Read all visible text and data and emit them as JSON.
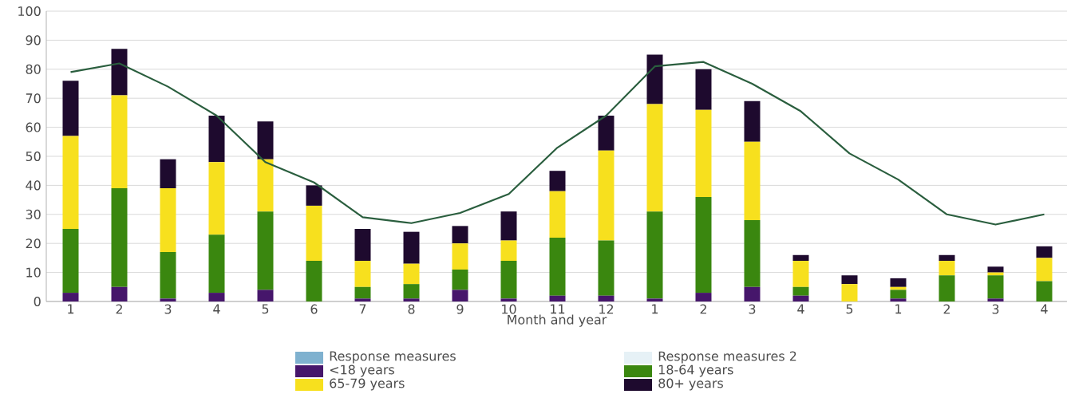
{
  "chart_data": {
    "type": "bar",
    "stacked": true,
    "xlabel": "Month and year",
    "categories": [
      "1",
      "2",
      "3",
      "4",
      "5",
      "6",
      "7",
      "8",
      "9",
      "10",
      "11",
      "12",
      "1",
      "2",
      "3",
      "4",
      "5",
      "1",
      "2",
      "3",
      "4"
    ],
    "ylim": [
      0,
      100
    ],
    "yticks": [
      0,
      10,
      20,
      30,
      40,
      50,
      60,
      70,
      80,
      90,
      100
    ],
    "grid": "y",
    "legend": "bottom",
    "series": [
      {
        "name": "Response measures",
        "color": "#7fb1cf",
        "values": [
          null,
          null,
          null,
          null,
          null,
          null,
          null,
          null,
          null,
          null,
          null,
          null,
          null,
          null,
          null,
          null,
          null,
          null,
          null,
          null,
          null
        ]
      },
      {
        "name": "Response measures 2",
        "color": "#e6f1f6",
        "values": [
          null,
          null,
          null,
          null,
          null,
          null,
          null,
          null,
          null,
          null,
          null,
          null,
          null,
          null,
          null,
          null,
          null,
          null,
          null,
          null,
          null
        ]
      },
      {
        "name": "<18 years",
        "color": "#46166b",
        "values": [
          3,
          5,
          1,
          3,
          4,
          0,
          1,
          1,
          4,
          1,
          2,
          2,
          1,
          3,
          5,
          2,
          0,
          1,
          0,
          1,
          0
        ]
      },
      {
        "name": "18-64 years",
        "color": "#3a870f",
        "values": [
          22,
          34,
          16,
          20,
          27,
          14,
          4,
          5,
          7,
          13,
          20,
          19,
          30,
          33,
          23,
          3,
          0,
          3,
          9,
          8,
          7
        ]
      },
      {
        "name": "65-79 years",
        "color": "#f7e01e",
        "values": [
          32,
          32,
          22,
          25,
          18,
          19,
          9,
          7,
          9,
          7,
          16,
          31,
          37,
          30,
          27,
          9,
          6,
          1,
          5,
          1,
          8
        ]
      },
      {
        "name": "80+ years",
        "color": "#1e0a2e",
        "values": [
          19,
          16,
          10,
          16,
          13,
          7,
          11,
          11,
          6,
          10,
          7,
          12,
          17,
          14,
          14,
          2,
          3,
          3,
          2,
          2,
          4
        ]
      },
      {
        "type": "line",
        "color": "#2a5e3e",
        "values": [
          79,
          82,
          74,
          64,
          48,
          41,
          29,
          27,
          30.5,
          37,
          53,
          64,
          81,
          82.5,
          75,
          65.5,
          51,
          42,
          30,
          26.5,
          30
        ]
      }
    ]
  }
}
